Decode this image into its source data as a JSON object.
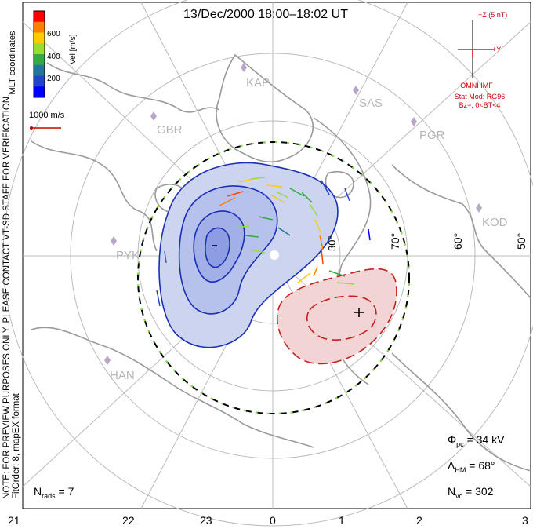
{
  "title": "13/Dec/2000 18:00–18:02 UT",
  "side_notes": {
    "mlt_coordinates": "MLT coordinates",
    "preview_note": "NOTE: FOR PREVIEW PURPOSES ONLY. PLEASE CONTACT VT-SD STAFF FOR VERIFICATION.",
    "fit_order": "FitOrder: 8, mapEX format"
  },
  "colorbar": {
    "label": "Vel [m/s]",
    "ticks": [
      "600",
      "400",
      "200"
    ],
    "colors": [
      "#ff0000",
      "#ff7f00",
      "#ffcc00",
      "#99dd33",
      "#33aa44",
      "#227799",
      "#2244cc",
      "#0000ff"
    ]
  },
  "velocity_scale": {
    "label": "1000 m/s",
    "color": "#cc0000"
  },
  "imf": {
    "z_label": "+Z (5 nT)",
    "y_label": "+Y",
    "source": "OMNI IMF",
    "model": "Stat Mod: RG96",
    "condition": "Bz−, 0<BT<4",
    "color": "#cc0000"
  },
  "stations": [
    "KAP",
    "SAS",
    "PGR",
    "GBR",
    "KOD",
    "PYK",
    "HAN"
  ],
  "latitude_labels": [
    "30°",
    "70°",
    "60°",
    "50°"
  ],
  "mlt_ticks": [
    "21",
    "22",
    "23",
    "0",
    "1",
    "2",
    "3"
  ],
  "stats": {
    "phi_pc": {
      "symbol": "Φ",
      "sub": "pc",
      "value": " = 34 kV"
    },
    "lambda_hm": {
      "symbol": "Λ",
      "sub": "HM",
      "value": " = 68°"
    },
    "n_vc": {
      "symbol": "N",
      "sub": "vc",
      "value": " = 302"
    },
    "n_rads": {
      "symbol": "N",
      "sub": "rads",
      "value": " = 7"
    }
  },
  "colors": {
    "negative_cell": "#1a2fb5",
    "positive_cell": "#c81e1e",
    "grid": "#bbbbbb",
    "coast": "#999999"
  }
}
